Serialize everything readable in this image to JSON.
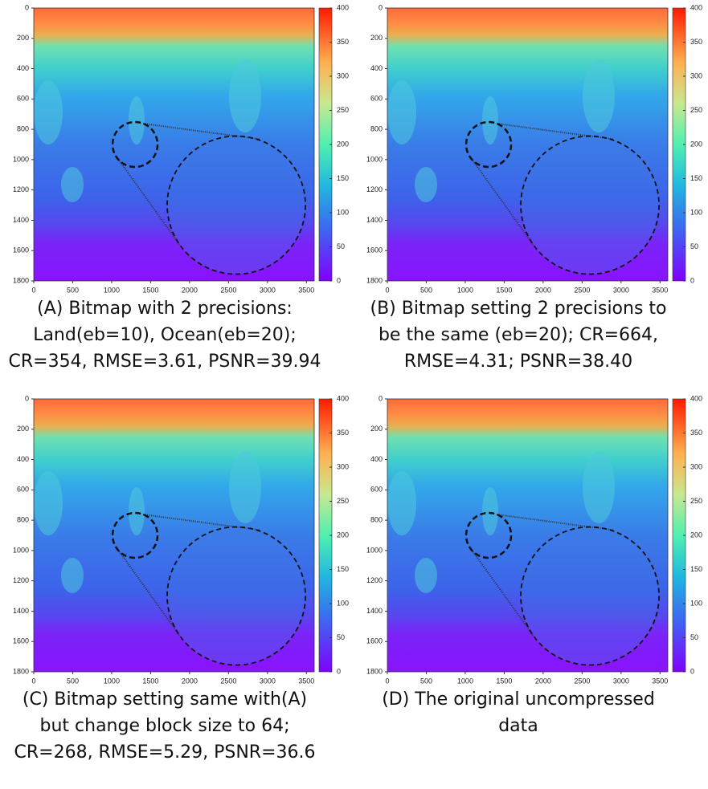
{
  "chart_data": [
    {
      "type": "heatmap",
      "caption": [
        "(A) Bitmap with 2 precisions:",
        "Land(eb=10), Ocean(eb=20);",
        "CR=354, RMSE=3.61, PSNR=39.94"
      ],
      "xlim": [
        0,
        3600
      ],
      "xticks": [
        0,
        500,
        1000,
        1500,
        2000,
        2500,
        3000,
        3500
      ],
      "ylim": [
        0,
        1800
      ],
      "y_inverted": true,
      "yticks": [
        0,
        200,
        400,
        600,
        800,
        1000,
        1200,
        1400,
        1600,
        1800
      ],
      "colorbar_lim": [
        0,
        400
      ],
      "colorbar_ticks": [
        0,
        50,
        100,
        150,
        200,
        250,
        300,
        350,
        400
      ]
    },
    {
      "type": "heatmap",
      "caption": [
        "(B) Bitmap setting 2 precisions to",
        "be the same (eb=20); CR=664,",
        "RMSE=4.31; PSNR=38.40"
      ],
      "xlim": [
        0,
        3600
      ],
      "xticks": [
        0,
        500,
        1000,
        1500,
        2000,
        2500,
        3000,
        3500
      ],
      "ylim": [
        0,
        1800
      ],
      "y_inverted": true,
      "yticks": [
        0,
        200,
        400,
        600,
        800,
        1000,
        1200,
        1400,
        1600,
        1800
      ],
      "colorbar_lim": [
        0,
        400
      ],
      "colorbar_ticks": [
        0,
        50,
        100,
        150,
        200,
        250,
        300,
        350,
        400
      ]
    },
    {
      "type": "heatmap",
      "caption": [
        "(C) Bitmap setting same with(A)",
        "but change block size to 64;",
        "CR=268, RMSE=5.29, PSNR=36.6"
      ],
      "xlim": [
        0,
        3600
      ],
      "xticks": [
        0,
        500,
        1000,
        1500,
        2000,
        2500,
        3000,
        3500
      ],
      "ylim": [
        0,
        1800
      ],
      "y_inverted": true,
      "yticks": [
        0,
        200,
        400,
        600,
        800,
        1000,
        1200,
        1400,
        1600,
        1800
      ],
      "colorbar_lim": [
        0,
        400
      ],
      "colorbar_ticks": [
        0,
        50,
        100,
        150,
        200,
        250,
        300,
        350,
        400
      ]
    },
    {
      "type": "heatmap",
      "caption": [
        "(D) The original uncompressed",
        "data"
      ],
      "xlim": [
        0,
        3600
      ],
      "xticks": [
        0,
        500,
        1000,
        1500,
        2000,
        2500,
        3000,
        3500
      ],
      "ylim": [
        0,
        1800
      ],
      "y_inverted": true,
      "yticks": [
        0,
        200,
        400,
        600,
        800,
        1000,
        1200,
        1400,
        1600,
        1800
      ],
      "colorbar_lim": [
        0,
        400
      ],
      "colorbar_ticks": [
        0,
        50,
        100,
        150,
        200,
        250,
        300,
        350,
        400
      ]
    }
  ]
}
